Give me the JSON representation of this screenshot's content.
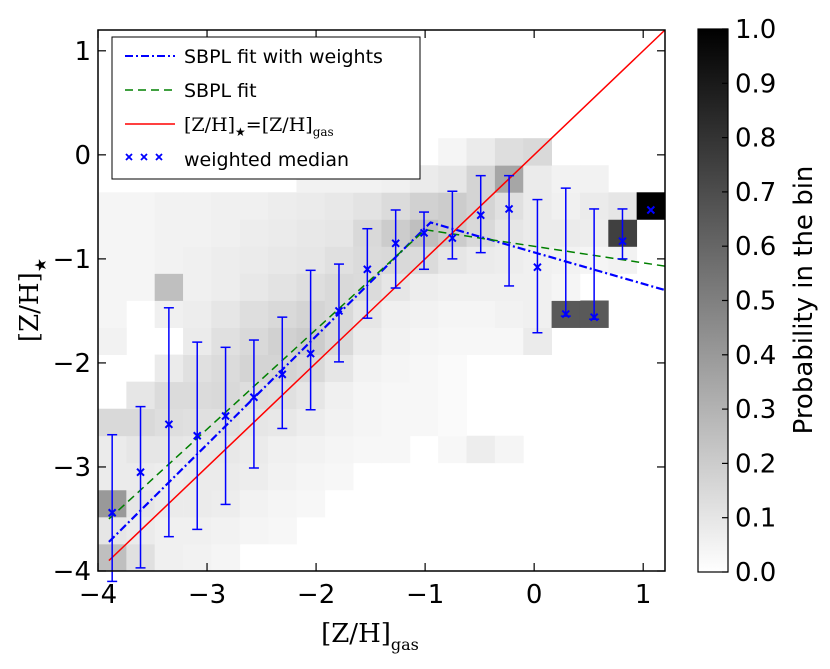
{
  "chart_data": {
    "type": "heatmap",
    "xlabel": "[Z/H]",
    "xlabel_sub": "gas",
    "ylabel": "[Z/H]",
    "ylabel_sub": "★",
    "xlim": [
      -4,
      1.2
    ],
    "ylim": [
      -4,
      1.2
    ],
    "xticks": [
      -4,
      -3,
      -2,
      -1,
      0,
      1
    ],
    "xtick_labels": [
      "−4",
      "−3",
      "−2",
      "−1",
      "0",
      "1"
    ],
    "yticks": [
      -4,
      -3,
      -2,
      -1,
      0,
      1
    ],
    "ytick_labels": [
      "−4",
      "−3",
      "−2",
      "−1",
      "0",
      "1"
    ],
    "heatmap": {
      "bin_width": 0.26,
      "x_start": -4,
      "y_start": -4,
      "cells": [
        [
          -3.87,
          -3.87,
          0.25
        ],
        [
          -3.61,
          -3.87,
          0.12
        ],
        [
          -3.35,
          -3.87,
          0.06
        ],
        [
          -3.09,
          -3.87,
          0.05
        ],
        [
          -2.83,
          -3.87,
          0.04
        ],
        [
          -3.87,
          -3.61,
          0.1
        ],
        [
          -3.61,
          -3.61,
          0.08
        ],
        [
          -3.35,
          -3.61,
          0.06
        ],
        [
          -3.09,
          -3.61,
          0.06
        ],
        [
          -2.83,
          -3.61,
          0.05
        ],
        [
          -2.57,
          -3.61,
          0.04
        ],
        [
          -2.31,
          -3.61,
          0.03
        ],
        [
          -3.87,
          -3.35,
          0.4
        ],
        [
          -3.61,
          -3.35,
          0.1
        ],
        [
          -3.35,
          -3.35,
          0.08
        ],
        [
          -3.09,
          -3.35,
          0.08
        ],
        [
          -2.83,
          -3.35,
          0.07
        ],
        [
          -2.57,
          -3.35,
          0.05
        ],
        [
          -2.31,
          -3.35,
          0.04
        ],
        [
          -2.05,
          -3.35,
          0.03
        ],
        [
          -3.87,
          -3.09,
          0.08
        ],
        [
          -3.61,
          -3.09,
          0.08
        ],
        [
          -3.35,
          -3.09,
          0.07
        ],
        [
          -3.09,
          -3.09,
          0.08
        ],
        [
          -2.83,
          -3.09,
          0.08
        ],
        [
          -2.57,
          -3.09,
          0.07
        ],
        [
          -2.31,
          -3.09,
          0.05
        ],
        [
          -2.05,
          -3.09,
          0.04
        ],
        [
          -1.79,
          -3.09,
          0.03
        ],
        [
          -3.87,
          -2.83,
          0.08
        ],
        [
          -3.61,
          -2.83,
          0.1
        ],
        [
          -3.35,
          -2.83,
          0.1
        ],
        [
          -3.09,
          -2.83,
          0.09
        ],
        [
          -2.83,
          -2.83,
          0.09
        ],
        [
          -2.57,
          -2.83,
          0.08
        ],
        [
          -2.31,
          -2.83,
          0.06
        ],
        [
          -2.05,
          -2.83,
          0.05
        ],
        [
          -1.79,
          -2.83,
          0.04
        ],
        [
          -1.53,
          -2.83,
          0.03
        ],
        [
          -1.27,
          -2.83,
          0.03
        ],
        [
          -0.75,
          -2.83,
          0.03
        ],
        [
          -0.49,
          -2.83,
          0.07
        ],
        [
          -0.23,
          -2.83,
          0.04
        ],
        [
          -3.87,
          -2.57,
          0.15
        ],
        [
          -3.61,
          -2.57,
          0.15
        ],
        [
          -3.35,
          -2.57,
          0.13
        ],
        [
          -3.09,
          -2.57,
          0.12
        ],
        [
          -2.83,
          -2.57,
          0.12
        ],
        [
          -2.57,
          -2.57,
          0.1
        ],
        [
          -2.31,
          -2.57,
          0.09
        ],
        [
          -2.05,
          -2.57,
          0.07
        ],
        [
          -1.79,
          -2.57,
          0.05
        ],
        [
          -1.53,
          -2.57,
          0.04
        ],
        [
          -1.27,
          -2.57,
          0.03
        ],
        [
          -1.01,
          -2.57,
          0.03
        ],
        [
          -0.75,
          -2.57,
          0.02
        ],
        [
          -3.61,
          -2.31,
          0.1
        ],
        [
          -3.35,
          -2.31,
          0.14
        ],
        [
          -3.09,
          -2.31,
          0.14
        ],
        [
          -2.83,
          -2.31,
          0.15
        ],
        [
          -2.57,
          -2.31,
          0.13
        ],
        [
          -2.31,
          -2.31,
          0.12
        ],
        [
          -2.05,
          -2.31,
          0.1
        ],
        [
          -1.79,
          -2.31,
          0.06
        ],
        [
          -1.53,
          -2.31,
          0.04
        ],
        [
          -1.27,
          -2.31,
          0.03
        ],
        [
          -1.01,
          -2.31,
          0.03
        ],
        [
          -0.75,
          -2.31,
          0.02
        ],
        [
          -3.35,
          -2.05,
          0.08
        ],
        [
          -3.09,
          -2.05,
          0.12
        ],
        [
          -2.83,
          -2.05,
          0.14
        ],
        [
          -2.57,
          -2.05,
          0.17
        ],
        [
          -2.31,
          -2.05,
          0.17
        ],
        [
          -2.05,
          -2.05,
          0.15
        ],
        [
          -1.79,
          -2.05,
          0.1
        ],
        [
          -1.53,
          -2.05,
          0.05
        ],
        [
          -1.27,
          -2.05,
          0.04
        ],
        [
          -1.01,
          -2.05,
          0.03
        ],
        [
          -0.75,
          -2.05,
          0.02
        ],
        [
          -3.87,
          -1.79,
          0.05
        ],
        [
          -3.09,
          -1.79,
          0.08
        ],
        [
          -2.83,
          -1.79,
          0.12
        ],
        [
          -2.57,
          -1.79,
          0.15
        ],
        [
          -2.31,
          -1.79,
          0.18
        ],
        [
          -2.05,
          -1.79,
          0.2
        ],
        [
          -1.79,
          -1.79,
          0.15
        ],
        [
          -1.53,
          -1.79,
          0.08
        ],
        [
          -1.27,
          -1.79,
          0.05
        ],
        [
          -1.01,
          -1.79,
          0.04
        ],
        [
          -0.75,
          -1.79,
          0.03
        ],
        [
          -0.49,
          -1.79,
          0.03
        ],
        [
          -0.23,
          -1.79,
          0.03
        ],
        [
          0.03,
          -1.79,
          0.08
        ],
        [
          -3.87,
          -1.53,
          0.04
        ],
        [
          -3.35,
          -1.53,
          0.06
        ],
        [
          -3.09,
          -1.53,
          0.07
        ],
        [
          -2.83,
          -1.53,
          0.1
        ],
        [
          -2.57,
          -1.53,
          0.13
        ],
        [
          -2.31,
          -1.53,
          0.15
        ],
        [
          -2.05,
          -1.53,
          0.17
        ],
        [
          -1.79,
          -1.53,
          0.15
        ],
        [
          -1.53,
          -1.53,
          0.1
        ],
        [
          -1.27,
          -1.53,
          0.06
        ],
        [
          -1.01,
          -1.53,
          0.05
        ],
        [
          -0.75,
          -1.53,
          0.04
        ],
        [
          -0.49,
          -1.53,
          0.04
        ],
        [
          -0.23,
          -1.53,
          0.05
        ],
        [
          0.03,
          -1.53,
          0.06
        ],
        [
          0.29,
          -1.53,
          0.65
        ],
        [
          0.55,
          -1.53,
          0.65
        ],
        [
          -3.87,
          -1.27,
          0.04
        ],
        [
          -3.61,
          -1.27,
          0.04
        ],
        [
          -3.35,
          -1.27,
          0.25
        ],
        [
          -3.09,
          -1.27,
          0.06
        ],
        [
          -2.83,
          -1.27,
          0.07
        ],
        [
          -2.57,
          -1.27,
          0.09
        ],
        [
          -2.31,
          -1.27,
          0.11
        ],
        [
          -2.05,
          -1.27,
          0.13
        ],
        [
          -1.79,
          -1.27,
          0.15
        ],
        [
          -1.53,
          -1.27,
          0.14
        ],
        [
          -1.27,
          -1.27,
          0.1
        ],
        [
          -1.01,
          -1.27,
          0.07
        ],
        [
          -0.75,
          -1.27,
          0.06
        ],
        [
          -0.49,
          -1.27,
          0.06
        ],
        [
          -0.23,
          -1.27,
          0.06
        ],
        [
          0.03,
          -1.27,
          0.06
        ],
        [
          0.29,
          -1.27,
          0.04
        ],
        [
          -3.87,
          -1.01,
          0.04
        ],
        [
          -3.61,
          -1.01,
          0.04
        ],
        [
          -3.35,
          -1.01,
          0.05
        ],
        [
          -3.09,
          -1.01,
          0.06
        ],
        [
          -2.83,
          -1.01,
          0.07
        ],
        [
          -2.57,
          -1.01,
          0.08
        ],
        [
          -2.31,
          -1.01,
          0.09
        ],
        [
          -2.05,
          -1.01,
          0.1
        ],
        [
          -1.79,
          -1.01,
          0.12
        ],
        [
          -1.53,
          -1.01,
          0.14
        ],
        [
          -1.27,
          -1.01,
          0.15
        ],
        [
          -1.01,
          -1.01,
          0.14
        ],
        [
          -0.75,
          -1.01,
          0.1
        ],
        [
          -0.49,
          -1.01,
          0.08
        ],
        [
          -0.23,
          -1.01,
          0.07
        ],
        [
          0.03,
          -1.01,
          0.06
        ],
        [
          0.29,
          -1.01,
          0.05
        ],
        [
          0.55,
          -1.01,
          0.04
        ],
        [
          0.81,
          -1.01,
          0.05
        ],
        [
          -3.87,
          -0.75,
          0.04
        ],
        [
          -3.61,
          -0.75,
          0.04
        ],
        [
          -3.35,
          -0.75,
          0.05
        ],
        [
          -3.09,
          -0.75,
          0.05
        ],
        [
          -2.83,
          -0.75,
          0.06
        ],
        [
          -2.57,
          -0.75,
          0.07
        ],
        [
          -2.31,
          -0.75,
          0.08
        ],
        [
          -2.05,
          -0.75,
          0.09
        ],
        [
          -1.79,
          -0.75,
          0.1
        ],
        [
          -1.53,
          -0.75,
          0.15
        ],
        [
          -1.27,
          -0.75,
          0.2
        ],
        [
          -1.01,
          -0.75,
          0.25
        ],
        [
          -0.75,
          -0.75,
          0.2
        ],
        [
          -0.49,
          -0.75,
          0.15
        ],
        [
          -0.23,
          -0.75,
          0.1
        ],
        [
          0.03,
          -0.75,
          0.08
        ],
        [
          0.29,
          -0.75,
          0.08
        ],
        [
          0.55,
          -0.75,
          0.07
        ],
        [
          0.81,
          -0.75,
          0.75
        ],
        [
          -3.87,
          -0.49,
          0.04
        ],
        [
          -3.61,
          -0.49,
          0.04
        ],
        [
          -3.35,
          -0.49,
          0.05
        ],
        [
          -3.09,
          -0.49,
          0.05
        ],
        [
          -2.83,
          -0.49,
          0.06
        ],
        [
          -2.57,
          -0.49,
          0.06
        ],
        [
          -2.31,
          -0.49,
          0.07
        ],
        [
          -2.05,
          -0.49,
          0.08
        ],
        [
          -1.79,
          -0.49,
          0.09
        ],
        [
          -1.53,
          -0.49,
          0.11
        ],
        [
          -1.27,
          -0.49,
          0.14
        ],
        [
          -1.01,
          -0.49,
          0.18
        ],
        [
          -0.75,
          -0.49,
          0.2
        ],
        [
          -0.49,
          -0.49,
          0.17
        ],
        [
          -0.23,
          -0.49,
          0.12
        ],
        [
          0.03,
          -0.49,
          0.08
        ],
        [
          0.29,
          -0.49,
          0.06
        ],
        [
          0.55,
          -0.49,
          0.08
        ],
        [
          0.81,
          -0.49,
          0.1
        ],
        [
          1.07,
          -0.49,
          1.0
        ],
        [
          -2.05,
          -0.23,
          0.05
        ],
        [
          -1.79,
          -0.23,
          0.05
        ],
        [
          -1.53,
          -0.23,
          0.05
        ],
        [
          -1.27,
          -0.23,
          0.06
        ],
        [
          -1.01,
          -0.23,
          0.08
        ],
        [
          -0.75,
          -0.23,
          0.1
        ],
        [
          -0.49,
          -0.23,
          0.17
        ],
        [
          -0.23,
          -0.23,
          0.35
        ],
        [
          0.03,
          -0.23,
          0.08
        ],
        [
          0.29,
          -0.23,
          0.05
        ],
        [
          0.55,
          -0.23,
          0.05
        ],
        [
          -0.75,
          0.03,
          0.04
        ],
        [
          -0.49,
          0.03,
          0.08
        ],
        [
          -0.23,
          0.03,
          0.13
        ],
        [
          0.03,
          0.03,
          0.15
        ]
      ]
    },
    "series": [
      {
        "name": "SBPL fit with weights",
        "style": "dash-dot",
        "color": "#0000ff",
        "x": [
          -3.9,
          -0.95,
          1.2
        ],
        "y": [
          -3.72,
          -0.65,
          -1.3
        ]
      },
      {
        "name": "SBPL fit",
        "style": "dashed",
        "color": "#008000",
        "x": [
          -3.9,
          -1.0,
          1.2
        ],
        "y": [
          -3.5,
          -0.72,
          -1.07
        ]
      },
      {
        "name": "[Z/H]★=[Z/H]gas",
        "style": "solid",
        "color": "#ff0000",
        "x": [
          -3.9,
          1.2
        ],
        "y": [
          -3.9,
          1.2
        ]
      },
      {
        "name": "weighted median",
        "style": "markers-errorbars",
        "color": "#0000ff",
        "x": [
          -3.87,
          -3.61,
          -3.35,
          -3.09,
          -2.83,
          -2.57,
          -2.31,
          -2.05,
          -1.79,
          -1.53,
          -1.27,
          -1.01,
          -0.75,
          -0.49,
          -0.23,
          0.03,
          0.29,
          0.55,
          0.81,
          1.07
        ],
        "y": [
          -3.44,
          -3.05,
          -2.59,
          -2.7,
          -2.51,
          -2.33,
          -2.11,
          -1.91,
          -1.5,
          -1.1,
          -0.85,
          -0.75,
          -0.8,
          -0.58,
          -0.52,
          -1.08,
          -1.53,
          -1.56,
          -0.83,
          -0.53
        ],
        "err_low": [
          -4.1,
          -3.97,
          -3.67,
          -3.6,
          -3.36,
          -3.01,
          -2.63,
          -2.45,
          -1.99,
          -1.57,
          -1.28,
          -1.1,
          -1.0,
          -0.94,
          -1.26,
          -1.71,
          -1.55,
          -1.58,
          -1.0,
          -0.53
        ],
        "err_high": [
          -2.69,
          -2.42,
          -1.47,
          -1.8,
          -1.85,
          -1.78,
          -1.56,
          -1.11,
          -1.05,
          -0.71,
          -0.53,
          -0.55,
          -0.35,
          -0.2,
          -0.2,
          -0.43,
          -0.32,
          -0.52,
          -0.52,
          -0.53
        ]
      }
    ],
    "legend": {
      "position": "top-left",
      "entries": [
        "SBPL fit with weights",
        "SBPL fit",
        "[Z/H]★=[Z/H]gas",
        "weighted median"
      ],
      "entry_parts": [
        {
          "main": "SBPL fit with weights"
        },
        {
          "main": "SBPL fit"
        },
        {
          "a": "[Z/H]",
          "a_sub": "★",
          "eq": "=",
          "b": "[Z/H]",
          "b_sub": "gas"
        },
        {
          "main": "weighted median"
        }
      ]
    },
    "colorbar": {
      "label": "Probability in the bin",
      "range": [
        0.0,
        1.0
      ],
      "ticks": [
        0.0,
        0.1,
        0.2,
        0.3,
        0.4,
        0.5,
        0.6,
        0.7,
        0.8,
        0.9,
        1.0
      ],
      "tick_labels": [
        "0.0",
        "0.1",
        "0.2",
        "0.3",
        "0.4",
        "0.5",
        "0.6",
        "0.7",
        "0.8",
        "0.9",
        "1.0"
      ],
      "colormap": "greys"
    }
  }
}
